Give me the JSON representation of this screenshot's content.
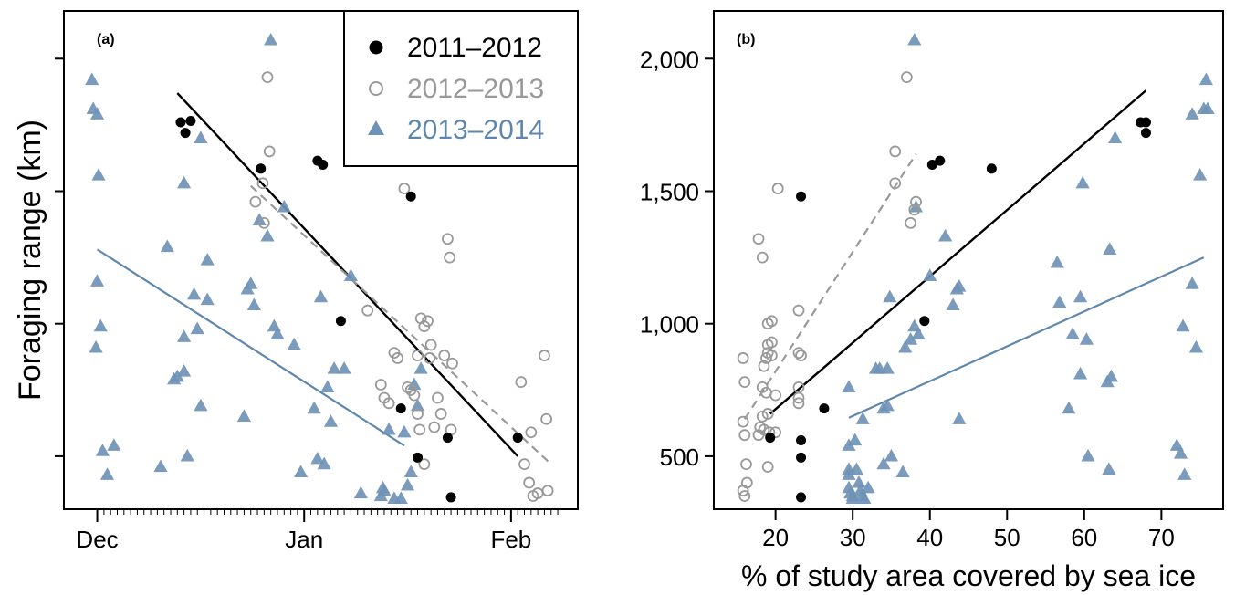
{
  "colors": {
    "black": "#000000",
    "gray": "#999999",
    "blue": "#5f87ad",
    "blue_fill": "#6f93b6"
  },
  "shared": {
    "ylabel": "Foraging range (km)",
    "legend": [
      "2011–2012",
      "2012–2013",
      "2013–2014"
    ]
  },
  "chart_data": [
    {
      "type": "scatter",
      "panel_label": "(a)",
      "xlabel": "",
      "x_axis": "date",
      "x_ticks": [
        "Dec",
        "Jan",
        "Feb"
      ],
      "x_tick_days": [
        0,
        31,
        62
      ],
      "x_range_days": [
        -5,
        72
      ],
      "ylim": [
        300,
        2180
      ],
      "y_ticks": [
        500,
        1000,
        1500,
        2000
      ],
      "y_tick_labels_shown": false,
      "legend_position": "top-right",
      "series": [
        {
          "name": "2011–2012",
          "marker": "filled-circle",
          "color": "#000000",
          "points": [
            [
              12.5,
              1760
            ],
            [
              13.2,
              1720
            ],
            [
              14.0,
              1765
            ],
            [
              24.5,
              1585
            ],
            [
              33.0,
              1615
            ],
            [
              33.8,
              1600
            ],
            [
              36.5,
              1010
            ],
            [
              45.5,
              680
            ],
            [
              47.0,
              1480
            ],
            [
              48.0,
              495
            ],
            [
              52.5,
              570
            ],
            [
              53.0,
              345
            ],
            [
              63.0,
              570
            ]
          ],
          "trend": {
            "x": [
              12.0,
              63.0
            ],
            "y": [
              1870,
              500
            ],
            "style": "solid"
          }
        },
        {
          "name": "2012–2013",
          "marker": "open-circle",
          "color": "#999999",
          "points": [
            [
              25.5,
              1930
            ],
            [
              25.8,
              1650
            ],
            [
              23.7,
              1460
            ],
            [
              24.8,
              1530
            ],
            [
              25.0,
              1380
            ],
            [
              40.5,
              1050
            ],
            [
              42.5,
              770
            ],
            [
              43.0,
              720
            ],
            [
              43.7,
              700
            ],
            [
              44.5,
              890
            ],
            [
              45.0,
              870
            ],
            [
              46.0,
              1510
            ],
            [
              46.5,
              760
            ],
            [
              47.0,
              750
            ],
            [
              47.5,
              730
            ],
            [
              48.0,
              880
            ],
            [
              48.5,
              1020
            ],
            [
              49.0,
              990
            ],
            [
              49.5,
              1010
            ],
            [
              50.0,
              920
            ],
            [
              49.8,
              870
            ],
            [
              48.3,
              600
            ],
            [
              48.0,
              660
            ],
            [
              49.0,
              470
            ],
            [
              50.5,
              610
            ],
            [
              51.0,
              720
            ],
            [
              51.5,
              660
            ],
            [
              52.0,
              880
            ],
            [
              52.5,
              1320
            ],
            [
              52.8,
              1250
            ],
            [
              53.2,
              850
            ],
            [
              53.0,
              600
            ],
            [
              63.5,
              780
            ],
            [
              64.0,
              470
            ],
            [
              64.7,
              400
            ],
            [
              65.0,
              590
            ],
            [
              65.3,
              350
            ],
            [
              66.0,
              360
            ],
            [
              67.0,
              880
            ],
            [
              67.3,
              640
            ],
            [
              67.5,
              370
            ]
          ],
          "trend": {
            "x": [
              23.0,
              68.0
            ],
            "y": [
              1520,
              470
            ],
            "style": "dashed"
          }
        },
        {
          "name": "2013–2014",
          "marker": "filled-triangle",
          "color": "#5f87ad",
          "points": [
            [
              -0.8,
              1920
            ],
            [
              -0.6,
              1810
            ],
            [
              0.0,
              1790
            ],
            [
              0.2,
              1560
            ],
            [
              0.0,
              1160
            ],
            [
              -0.2,
              910
            ],
            [
              0.5,
              990
            ],
            [
              0.8,
              520
            ],
            [
              1.5,
              430
            ],
            [
              2.5,
              540
            ],
            [
              9.5,
              460
            ],
            [
              10.5,
              1290
            ],
            [
              11.5,
              790
            ],
            [
              12.0,
              800
            ],
            [
              13.0,
              820
            ],
            [
              13.0,
              950
            ],
            [
              13.0,
              1530
            ],
            [
              13.5,
              500
            ],
            [
              14.5,
              1110
            ],
            [
              15.0,
              980
            ],
            [
              15.5,
              690
            ],
            [
              15.5,
              1700
            ],
            [
              16.5,
              1090
            ],
            [
              16.5,
              1240
            ],
            [
              22.0,
              650
            ],
            [
              22.5,
              1130
            ],
            [
              23.0,
              1150
            ],
            [
              23.5,
              1070
            ],
            [
              24.3,
              1390
            ],
            [
              25.5,
              1330
            ],
            [
              26.0,
              2070
            ],
            [
              26.5,
              990
            ],
            [
              27.0,
              960
            ],
            [
              28.0,
              1440
            ],
            [
              29.5,
              920
            ],
            [
              30.5,
              440
            ],
            [
              32.5,
              680
            ],
            [
              33.0,
              490
            ],
            [
              33.5,
              1100
            ],
            [
              34.0,
              470
            ],
            [
              34.5,
              760
            ],
            [
              35.0,
              630
            ],
            [
              35.5,
              830
            ],
            [
              37.0,
              830
            ],
            [
              38.0,
              1180
            ],
            [
              39.5,
              360
            ],
            [
              42.5,
              350
            ],
            [
              42.8,
              380
            ],
            [
              43.0,
              370
            ],
            [
              43.7,
              600
            ],
            [
              44.5,
              340
            ],
            [
              45.5,
              340
            ],
            [
              46.0,
              590
            ],
            [
              46.5,
              390
            ],
            [
              47.0,
              440
            ],
            [
              47.5,
              770
            ],
            [
              48.0,
              690
            ],
            [
              48.5,
              830
            ]
          ],
          "trend": {
            "x": [
              0.0,
              46.0
            ],
            "y": [
              1280,
              540
            ],
            "style": "solid"
          }
        }
      ]
    },
    {
      "type": "scatter",
      "panel_label": "(b)",
      "xlabel": "% of study area covered by sea ice",
      "xlim": [
        12,
        78
      ],
      "x_ticks": [
        20,
        30,
        40,
        50,
        60,
        70
      ],
      "ylim": [
        300,
        2180
      ],
      "y_ticks": [
        500,
        1000,
        1500,
        2000
      ],
      "y_tick_labels": [
        "500",
        "1,000",
        "1,500",
        "2,000"
      ],
      "series": [
        {
          "name": "2011–2012",
          "marker": "filled-circle",
          "color": "#000000",
          "points": [
            [
              19.3,
              570
            ],
            [
              23.3,
              1480
            ],
            [
              23.3,
              560
            ],
            [
              23.3,
              495
            ],
            [
              23.3,
              345
            ],
            [
              26.3,
              680
            ],
            [
              39.3,
              1010
            ],
            [
              40.3,
              1600
            ],
            [
              41.3,
              1615
            ],
            [
              48.0,
              1585
            ],
            [
              67.3,
              1760
            ],
            [
              68.0,
              1760
            ],
            [
              68.0,
              1720
            ]
          ],
          "trend": {
            "x": [
              19.3,
              68.0
            ],
            "y": [
              660,
              1880
            ],
            "style": "solid"
          }
        },
        {
          "name": "2012–2013",
          "marker": "open-circle",
          "color": "#999999",
          "points": [
            [
              15.8,
              870
            ],
            [
              16.0,
              780
            ],
            [
              15.8,
              630
            ],
            [
              16.0,
              580
            ],
            [
              16.2,
              470
            ],
            [
              15.8,
              370
            ],
            [
              16.0,
              350
            ],
            [
              16.3,
              400
            ],
            [
              17.8,
              1320
            ],
            [
              18.3,
              1250
            ],
            [
              19.0,
              1000
            ],
            [
              19.5,
              1010
            ],
            [
              19.0,
              920
            ],
            [
              19.5,
              930
            ],
            [
              19.0,
              890
            ],
            [
              19.5,
              880
            ],
            [
              18.8,
              870
            ],
            [
              18.5,
              840
            ],
            [
              18.3,
              760
            ],
            [
              18.8,
              740
            ],
            [
              19.0,
              660
            ],
            [
              18.3,
              650
            ],
            [
              18.0,
              610
            ],
            [
              18.5,
              600
            ],
            [
              19.2,
              590
            ],
            [
              17.8,
              580
            ],
            [
              19.0,
              460
            ],
            [
              20.0,
              730
            ],
            [
              20.3,
              1510
            ],
            [
              20.0,
              590
            ],
            [
              23.0,
              1050
            ],
            [
              23.0,
              890
            ],
            [
              23.3,
              880
            ],
            [
              23.0,
              760
            ],
            [
              23.0,
              720
            ],
            [
              23.0,
              700
            ],
            [
              35.5,
              1650
            ],
            [
              35.5,
              1530
            ],
            [
              37.0,
              1930
            ],
            [
              37.5,
              1380
            ],
            [
              38.0,
              1430
            ],
            [
              38.2,
              1460
            ]
          ],
          "trend": {
            "x": [
              16.0,
              38.2
            ],
            "y": [
              640,
              1640
            ],
            "style": "dashed"
          }
        },
        {
          "name": "2013–2014",
          "marker": "filled-triangle",
          "color": "#5f87ad",
          "points": [
            [
              29.5,
              760
            ],
            [
              29.5,
              540
            ],
            [
              29.5,
              450
            ],
            [
              29.5,
              430
            ],
            [
              29.5,
              380
            ],
            [
              29.7,
              360
            ],
            [
              30.0,
              350
            ],
            [
              30.0,
              340
            ],
            [
              30.3,
              560
            ],
            [
              30.5,
              450
            ],
            [
              30.8,
              400
            ],
            [
              31.0,
              370
            ],
            [
              31.2,
              350
            ],
            [
              31.5,
              340
            ],
            [
              31.3,
              640
            ],
            [
              32.0,
              380
            ],
            [
              33.0,
              830
            ],
            [
              33.5,
              830
            ],
            [
              34.0,
              680
            ],
            [
              34.0,
              470
            ],
            [
              34.5,
              830
            ],
            [
              34.5,
              690
            ],
            [
              34.8,
              1100
            ],
            [
              35.0,
              500
            ],
            [
              36.5,
              440
            ],
            [
              36.8,
              910
            ],
            [
              37.5,
              940
            ],
            [
              38.0,
              2070
            ],
            [
              38.0,
              990
            ],
            [
              38.2,
              1440
            ],
            [
              38.5,
              960
            ],
            [
              40.0,
              1180
            ],
            [
              42.0,
              1330
            ],
            [
              43.0,
              1070
            ],
            [
              43.5,
              1130
            ],
            [
              43.8,
              1140
            ],
            [
              43.8,
              640
            ],
            [
              56.5,
              1230
            ],
            [
              56.8,
              1080
            ],
            [
              58.0,
              680
            ],
            [
              58.5,
              960
            ],
            [
              59.5,
              810
            ],
            [
              59.5,
              1100
            ],
            [
              59.8,
              1530
            ],
            [
              60.3,
              940
            ],
            [
              60.5,
              500
            ],
            [
              63.0,
              780
            ],
            [
              63.2,
              450
            ],
            [
              63.3,
              1280
            ],
            [
              63.5,
              800
            ],
            [
              64.0,
              1700
            ],
            [
              72.0,
              540
            ],
            [
              72.5,
              510
            ],
            [
              72.8,
              990
            ],
            [
              73.0,
              430
            ],
            [
              74.0,
              1150
            ],
            [
              74.0,
              1790
            ],
            [
              74.5,
              910
            ],
            [
              75.0,
              1560
            ],
            [
              75.5,
              1810
            ],
            [
              75.8,
              1920
            ],
            [
              76.0,
              1810
            ]
          ],
          "trend": {
            "x": [
              29.5,
              75.5
            ],
            "y": [
              645,
              1250
            ],
            "style": "solid"
          }
        }
      ]
    }
  ]
}
